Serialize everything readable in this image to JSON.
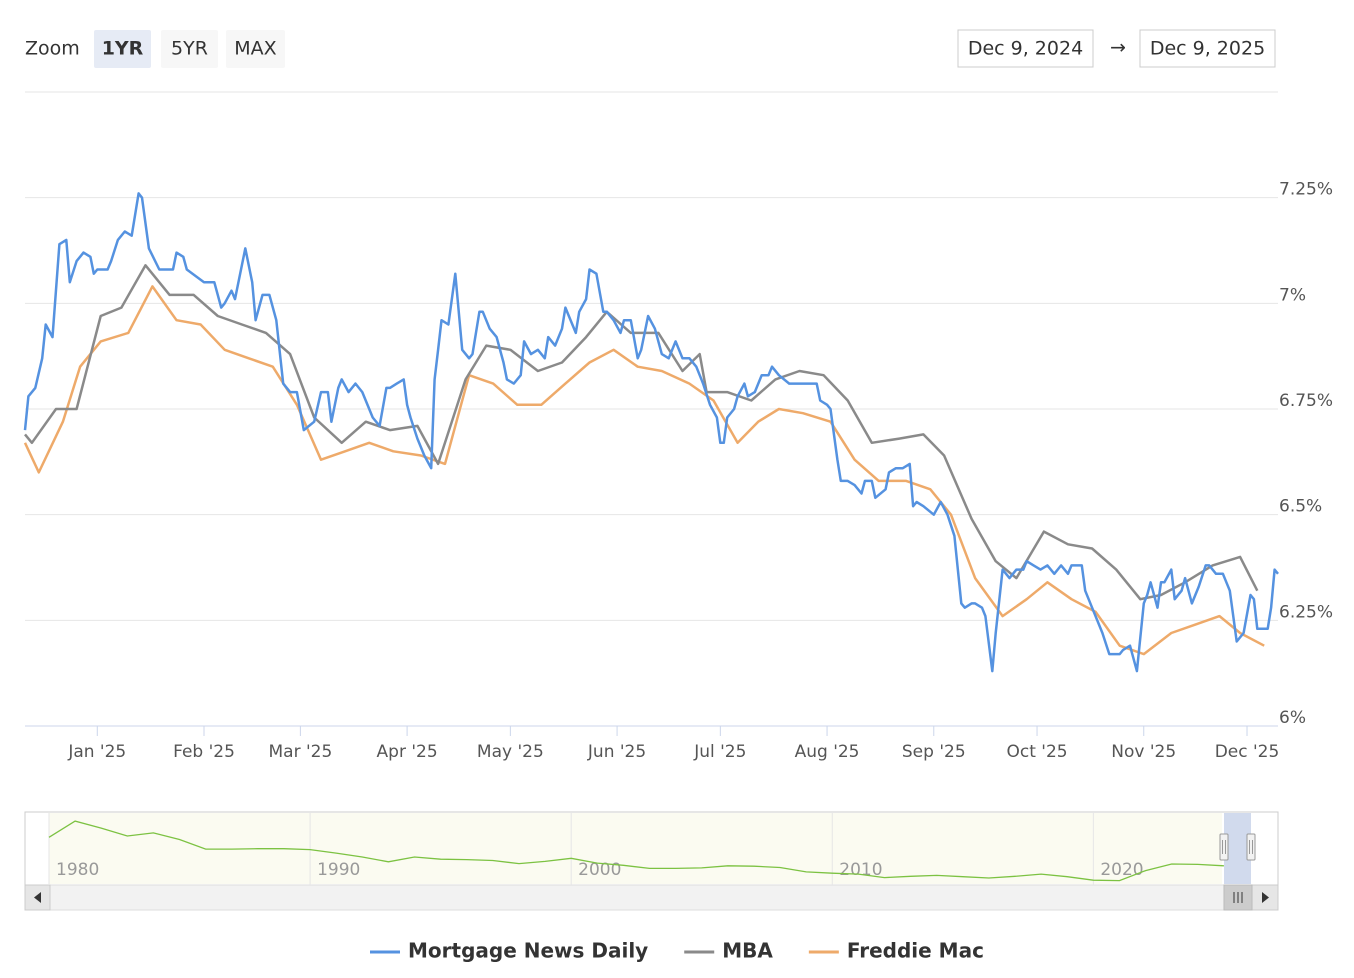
{
  "chart_data": {
    "type": "line",
    "range_selector": {
      "label": "Zoom",
      "buttons": [
        "1YR",
        "5YR",
        "MAX"
      ],
      "selected": 0,
      "from": "Dec 9, 2024",
      "arrow": "→",
      "to": "Dec 9, 2025"
    },
    "xlim": [
      "2024-12-11",
      "2025-12-10"
    ],
    "xticks": [
      {
        "value": "2025-01-01",
        "label": "Jan '25"
      },
      {
        "value": "2025-02-01",
        "label": "Feb '25"
      },
      {
        "value": "2025-03-01",
        "label": "Mar '25"
      },
      {
        "value": "2025-04-01",
        "label": "Apr '25"
      },
      {
        "value": "2025-05-01",
        "label": "May '25"
      },
      {
        "value": "2025-06-01",
        "label": "Jun '25"
      },
      {
        "value": "2025-07-01",
        "label": "Jul '25"
      },
      {
        "value": "2025-08-01",
        "label": "Aug '25"
      },
      {
        "value": "2025-09-01",
        "label": "Sep '25"
      },
      {
        "value": "2025-10-01",
        "label": "Oct '25"
      },
      {
        "value": "2025-11-01",
        "label": "Nov '25"
      },
      {
        "value": "2025-12-01",
        "label": "Dec '25"
      }
    ],
    "ylim": [
      6,
      7.5
    ],
    "yticks": [
      {
        "value": 6,
        "label": "6%"
      },
      {
        "value": 6.25,
        "label": "6.25%"
      },
      {
        "value": 6.5,
        "label": "6.5%"
      },
      {
        "value": 6.75,
        "label": "6.75%"
      },
      {
        "value": 7,
        "label": "7%"
      },
      {
        "value": 7.25,
        "label": "7.25%"
      }
    ],
    "grid": true,
    "legend": "bottom",
    "series": [
      {
        "name": "Mortgage News Daily",
        "color": "#5592e0",
        "x": [
          "2024-12-11",
          "2024-12-12",
          "2024-12-14",
          "2024-12-16",
          "2024-12-17",
          "2024-12-19",
          "2024-12-21",
          "2024-12-23",
          "2024-12-24",
          "2024-12-26",
          "2024-12-28",
          "2024-12-30",
          "2024-12-31",
          "2025-01-01",
          "2025-01-04",
          "2025-01-05",
          "2025-01-07",
          "2025-01-09",
          "2025-01-11",
          "2025-01-13",
          "2025-01-14",
          "2025-01-16",
          "2025-01-19",
          "2025-01-23",
          "2025-01-24",
          "2025-01-26",
          "2025-01-27",
          "2025-02-01",
          "2025-02-04",
          "2025-02-06",
          "2025-02-07",
          "2025-02-09",
          "2025-02-10",
          "2025-02-13",
          "2025-02-15",
          "2025-02-16",
          "2025-02-18",
          "2025-02-20",
          "2025-02-22",
          "2025-02-24",
          "2025-02-26",
          "2025-02-28",
          "2025-03-02",
          "2025-03-05",
          "2025-03-07",
          "2025-03-09",
          "2025-03-10",
          "2025-03-12",
          "2025-03-13",
          "2025-03-15",
          "2025-03-17",
          "2025-03-19",
          "2025-03-22",
          "2025-03-24",
          "2025-03-26",
          "2025-03-27",
          "2025-03-29",
          "2025-03-31",
          "2025-04-01",
          "2025-04-02",
          "2025-04-04",
          "2025-04-06",
          "2025-04-08",
          "2025-04-09",
          "2025-04-10",
          "2025-04-11",
          "2025-04-13",
          "2025-04-15",
          "2025-04-17",
          "2025-04-19",
          "2025-04-20",
          "2025-04-22",
          "2025-04-23",
          "2025-04-25",
          "2025-04-27",
          "2025-04-29",
          "2025-04-30",
          "2025-05-02",
          "2025-05-04",
          "2025-05-05",
          "2025-05-07",
          "2025-05-09",
          "2025-05-11",
          "2025-05-12",
          "2025-05-14",
          "2025-05-16",
          "2025-05-17",
          "2025-05-20",
          "2025-05-21",
          "2025-05-23",
          "2025-05-24",
          "2025-05-26",
          "2025-05-28",
          "2025-05-29",
          "2025-05-31",
          "2025-06-02",
          "2025-06-03",
          "2025-06-05",
          "2025-06-07",
          "2025-06-08",
          "2025-06-10",
          "2025-06-12",
          "2025-06-14",
          "2025-06-16",
          "2025-06-18",
          "2025-06-20",
          "2025-06-22",
          "2025-06-24",
          "2025-06-26",
          "2025-06-28",
          "2025-06-30",
          "2025-07-01",
          "2025-07-02",
          "2025-07-03",
          "2025-07-05",
          "2025-07-06",
          "2025-07-08",
          "2025-07-09",
          "2025-07-11",
          "2025-07-13",
          "2025-07-15",
          "2025-07-16",
          "2025-07-18",
          "2025-07-21",
          "2025-07-23",
          "2025-07-25",
          "2025-07-27",
          "2025-07-29",
          "2025-07-30",
          "2025-08-01",
          "2025-08-02",
          "2025-08-04",
          "2025-08-05",
          "2025-08-07",
          "2025-08-09",
          "2025-08-11",
          "2025-08-12",
          "2025-08-14",
          "2025-08-15",
          "2025-08-18",
          "2025-08-19",
          "2025-08-21",
          "2025-08-23",
          "2025-08-25",
          "2025-08-26",
          "2025-08-27",
          "2025-08-29",
          "2025-09-01",
          "2025-09-03",
          "2025-09-05",
          "2025-09-07",
          "2025-09-09",
          "2025-09-10",
          "2025-09-12",
          "2025-09-13",
          "2025-09-15",
          "2025-09-16",
          "2025-09-18",
          "2025-09-19",
          "2025-09-21",
          "2025-09-23",
          "2025-09-25",
          "2025-09-27",
          "2025-09-28",
          "2025-09-30",
          "2025-10-02",
          "2025-10-04",
          "2025-10-06",
          "2025-10-08",
          "2025-10-10",
          "2025-10-11",
          "2025-10-14",
          "2025-10-15",
          "2025-10-17",
          "2025-10-19",
          "2025-10-20",
          "2025-10-22",
          "2025-10-25",
          "2025-10-26",
          "2025-10-28",
          "2025-10-30",
          "2025-11-01",
          "2025-11-02",
          "2025-11-03",
          "2025-11-05",
          "2025-11-06",
          "2025-11-07",
          "2025-11-09",
          "2025-11-10",
          "2025-11-12",
          "2025-11-13",
          "2025-11-15",
          "2025-11-17",
          "2025-11-19",
          "2025-11-20",
          "2025-11-22",
          "2025-11-24",
          "2025-11-26",
          "2025-11-28",
          "2025-11-30",
          "2025-12-02",
          "2025-12-03",
          "2025-12-04",
          "2025-12-07",
          "2025-12-08",
          "2025-12-09",
          "2025-12-10"
        ],
        "values": [
          6.7,
          6.78,
          6.8,
          6.87,
          6.95,
          6.92,
          7.14,
          7.15,
          7.05,
          7.1,
          7.12,
          7.11,
          7.07,
          7.08,
          7.08,
          7.1,
          7.15,
          7.17,
          7.16,
          7.26,
          7.25,
          7.13,
          7.08,
          7.08,
          7.12,
          7.11,
          7.08,
          7.05,
          7.05,
          6.99,
          7.0,
          7.03,
          7.01,
          7.13,
          7.05,
          6.96,
          7.02,
          7.02,
          6.96,
          6.81,
          6.79,
          6.79,
          6.7,
          6.72,
          6.79,
          6.79,
          6.72,
          6.8,
          6.82,
          6.79,
          6.81,
          6.79,
          6.73,
          6.71,
          6.8,
          6.8,
          6.81,
          6.82,
          6.76,
          6.73,
          6.68,
          6.64,
          6.61,
          6.82,
          6.89,
          6.96,
          6.95,
          7.07,
          6.89,
          6.87,
          6.88,
          6.98,
          6.98,
          6.94,
          6.92,
          6.86,
          6.82,
          6.81,
          6.83,
          6.91,
          6.88,
          6.89,
          6.87,
          6.92,
          6.9,
          6.94,
          6.99,
          6.93,
          6.98,
          7.01,
          7.08,
          7.07,
          6.98,
          6.98,
          6.96,
          6.93,
          6.96,
          6.96,
          6.87,
          6.89,
          6.97,
          6.94,
          6.88,
          6.87,
          6.91,
          6.87,
          6.87,
          6.85,
          6.81,
          6.76,
          6.73,
          6.67,
          6.67,
          6.73,
          6.75,
          6.78,
          6.81,
          6.78,
          6.79,
          6.83,
          6.83,
          6.85,
          6.83,
          6.81,
          6.81,
          6.81,
          6.81,
          6.81,
          6.77,
          6.76,
          6.75,
          6.63,
          6.58,
          6.58,
          6.57,
          6.55,
          6.58,
          6.58,
          6.54,
          6.56,
          6.6,
          6.61,
          6.61,
          6.62,
          6.52,
          6.53,
          6.52,
          6.5,
          6.53,
          6.5,
          6.45,
          6.29,
          6.28,
          6.29,
          6.29,
          6.28,
          6.26,
          6.13,
          6.22,
          6.37,
          6.35,
          6.37,
          6.37,
          6.39,
          6.38,
          6.37,
          6.38,
          6.36,
          6.38,
          6.36,
          6.38,
          6.38,
          6.32,
          6.28,
          6.24,
          6.22,
          6.17,
          6.17,
          6.18,
          6.19,
          6.13,
          6.29,
          6.31,
          6.34,
          6.28,
          6.34,
          6.34,
          6.37,
          6.3,
          6.32,
          6.35,
          6.29,
          6.33,
          6.38,
          6.38,
          6.36,
          6.36,
          6.32,
          6.2,
          6.22,
          6.31,
          6.3,
          6.23,
          6.23,
          6.28,
          6.37,
          6.36
        ]
      },
      {
        "name": "MBA",
        "color": "#8a8a8a",
        "x": [
          "2024-12-11",
          "2024-12-13",
          "2024-12-20",
          "2024-12-26",
          "2025-01-02",
          "2025-01-08",
          "2025-01-15",
          "2025-01-22",
          "2025-01-29",
          "2025-02-05",
          "2025-02-12",
          "2025-02-19",
          "2025-02-26",
          "2025-03-05",
          "2025-03-13",
          "2025-03-20",
          "2025-03-27",
          "2025-04-04",
          "2025-04-10",
          "2025-04-18",
          "2025-04-24",
          "2025-05-01",
          "2025-05-09",
          "2025-05-16",
          "2025-05-23",
          "2025-05-29",
          "2025-06-05",
          "2025-06-13",
          "2025-06-20",
          "2025-06-25",
          "2025-06-27",
          "2025-07-03",
          "2025-07-10",
          "2025-07-17",
          "2025-07-24",
          "2025-07-31",
          "2025-08-07",
          "2025-08-14",
          "2025-08-22",
          "2025-08-29",
          "2025-09-04",
          "2025-09-12",
          "2025-09-19",
          "2025-09-25",
          "2025-10-03",
          "2025-10-10",
          "2025-10-17",
          "2025-10-24",
          "2025-10-31",
          "2025-11-06",
          "2025-11-13",
          "2025-11-21",
          "2025-11-29",
          "2025-12-04"
        ],
        "values": [
          6.69,
          6.67,
          6.75,
          6.75,
          6.97,
          6.99,
          7.09,
          7.02,
          7.02,
          6.97,
          6.95,
          6.93,
          6.88,
          6.73,
          6.67,
          6.72,
          6.7,
          6.71,
          6.62,
          6.82,
          6.9,
          6.89,
          6.84,
          6.86,
          6.92,
          6.98,
          6.93,
          6.93,
          6.84,
          6.88,
          6.79,
          6.79,
          6.77,
          6.82,
          6.84,
          6.83,
          6.77,
          6.67,
          6.68,
          6.69,
          6.64,
          6.49,
          6.39,
          6.35,
          6.46,
          6.43,
          6.42,
          6.37,
          6.3,
          6.31,
          6.34,
          6.38,
          6.4,
          6.32
        ]
      },
      {
        "name": "Freddie Mac",
        "color": "#eeaa6a",
        "x": [
          "2024-12-11",
          "2024-12-15",
          "2024-12-22",
          "2024-12-27",
          "2025-01-02",
          "2025-01-10",
          "2025-01-17",
          "2025-01-24",
          "2025-01-31",
          "2025-02-07",
          "2025-02-14",
          "2025-02-21",
          "2025-02-28",
          "2025-03-07",
          "2025-03-14",
          "2025-03-21",
          "2025-03-28",
          "2025-04-05",
          "2025-04-12",
          "2025-04-19",
          "2025-04-26",
          "2025-05-03",
          "2025-05-10",
          "2025-05-17",
          "2025-05-24",
          "2025-05-31",
          "2025-06-07",
          "2025-06-14",
          "2025-06-22",
          "2025-06-29",
          "2025-07-06",
          "2025-07-12",
          "2025-07-18",
          "2025-07-25",
          "2025-08-02",
          "2025-08-09",
          "2025-08-16",
          "2025-08-24",
          "2025-08-31",
          "2025-09-06",
          "2025-09-13",
          "2025-09-21",
          "2025-09-28",
          "2025-10-04",
          "2025-10-11",
          "2025-10-18",
          "2025-10-25",
          "2025-11-01",
          "2025-11-09",
          "2025-11-16",
          "2025-11-23",
          "2025-11-29",
          "2025-12-06"
        ],
        "values": [
          6.67,
          6.6,
          6.72,
          6.85,
          6.91,
          6.93,
          7.04,
          6.96,
          6.95,
          6.89,
          6.87,
          6.85,
          6.76,
          6.63,
          6.65,
          6.67,
          6.65,
          6.64,
          6.62,
          6.83,
          6.81,
          6.76,
          6.76,
          6.81,
          6.86,
          6.89,
          6.85,
          6.84,
          6.81,
          6.77,
          6.67,
          6.72,
          6.75,
          6.74,
          6.72,
          6.63,
          6.58,
          6.58,
          6.56,
          6.5,
          6.35,
          6.26,
          6.3,
          6.34,
          6.3,
          6.27,
          6.19,
          6.17,
          6.22,
          6.24,
          6.26,
          6.22,
          6.19
        ]
      }
    ],
    "navigator": {
      "color": "#7cc242",
      "xlim": [
        1980,
        2026
      ],
      "ylim": [
        2,
        18
      ],
      "xticks": [
        1980,
        1990,
        2000,
        2010,
        2020
      ],
      "x": [
        1980,
        1981,
        1982,
        1983,
        1984,
        1985,
        1986,
        1987,
        1988,
        1989,
        1990,
        1991,
        1992,
        1993,
        1994,
        1995,
        1996,
        1997,
        1998,
        1999,
        2000,
        2001,
        2002,
        2003,
        2004,
        2005,
        2006,
        2007,
        2008,
        2009,
        2010,
        2011,
        2012,
        2013,
        2014,
        2015,
        2016,
        2017,
        2018,
        2019,
        2020,
        2021,
        2022,
        2023,
        2024,
        2025
      ],
      "values": [
        12.9,
        16.6,
        15.0,
        13.2,
        13.9,
        12.4,
        10.2,
        10.2,
        10.3,
        10.3,
        10.1,
        9.3,
        8.4,
        7.3,
        8.4,
        7.9,
        7.8,
        7.6,
        6.9,
        7.4,
        8.1,
        7.0,
        6.5,
        5.8,
        5.8,
        5.9,
        6.4,
        6.3,
        6.0,
        5.0,
        4.7,
        4.5,
        3.7,
        4.0,
        4.2,
        3.9,
        3.6,
        4.0,
        4.5,
        3.9,
        3.1,
        3.0,
        5.3,
        6.8,
        6.7,
        6.4
      ]
    }
  }
}
